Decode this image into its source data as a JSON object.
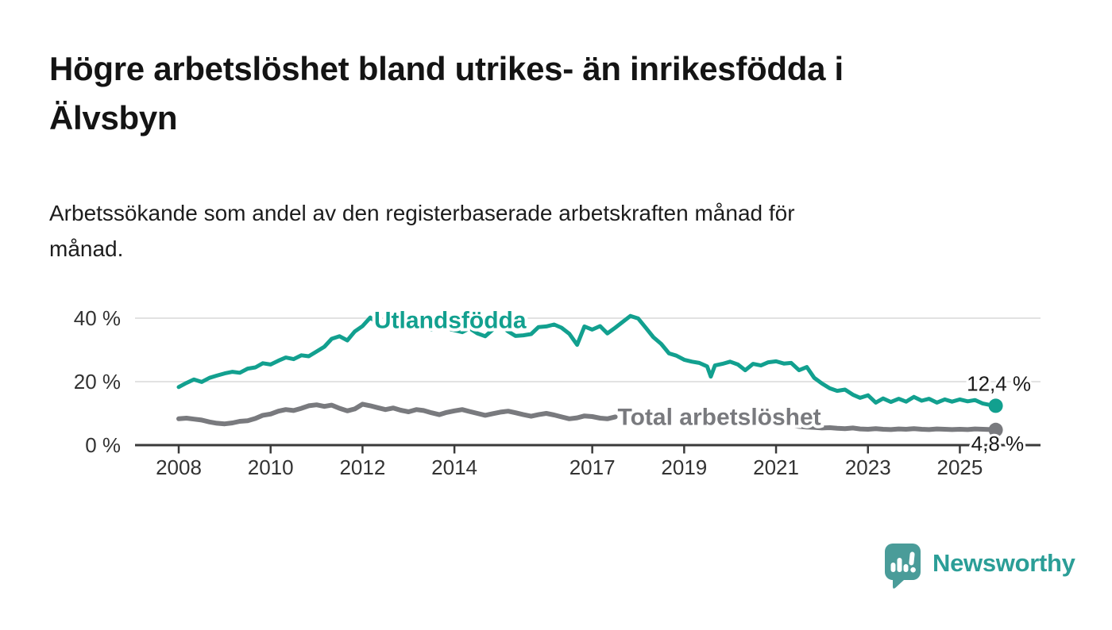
{
  "title": {
    "line1": "Högre arbetslöshet bland utrikes- än inrikesfödda i",
    "line2": "Älvsbyn"
  },
  "subtitle": {
    "line1": "Arbetssökande som andel av den registerbaserade arbetskraften månad för",
    "line2": "månad."
  },
  "branding": {
    "name": "Newsworthy",
    "icon": "newsworthy-speech-bubble-bar-chart-icon",
    "bubble_color": "#4a9c99",
    "text_color": "#2b9e97"
  },
  "chart_data": {
    "type": "line",
    "title": "Högre arbetslöshet bland utrikes- än inrikesfödda i Älvsbyn",
    "xlabel": "",
    "ylabel": "",
    "xlim": [
      2007.0,
      2026.8
    ],
    "ylim": [
      0,
      44
    ],
    "grid": "horizontal",
    "legend_position": "inline-labels",
    "colors": {
      "gridline": "#d9d9d9",
      "axis": "#3a3a3a",
      "tick_label": "#333333",
      "annotation": "#1a1a1a"
    },
    "x_axis": {
      "ticks": [
        {
          "value": 2008,
          "label": "2008"
        },
        {
          "value": 2010,
          "label": "2010"
        },
        {
          "value": 2012,
          "label": "2012"
        },
        {
          "value": 2014,
          "label": "2014"
        },
        {
          "value": 2017,
          "label": "2017"
        },
        {
          "value": 2019,
          "label": "2019"
        },
        {
          "value": 2021,
          "label": "2021"
        },
        {
          "value": 2023,
          "label": "2023"
        },
        {
          "value": 2025,
          "label": "2025"
        }
      ]
    },
    "y_axis": {
      "ticks": [
        {
          "value": 0,
          "label": "0 %"
        },
        {
          "value": 20,
          "label": "20 %"
        },
        {
          "value": 40,
          "label": "40 %"
        }
      ]
    },
    "series": [
      {
        "name": "Utlandsfödda",
        "color": "#12a08f",
        "line_width": 5,
        "end_dot": true,
        "label": {
          "text": "Utlandsfödda",
          "x": 2012.25,
          "y": 38.8
        },
        "end_annotation": {
          "text": "12,4 %",
          "x": 2025.85,
          "y": 18.8
        },
        "points": [
          [
            2008.0,
            18.3
          ],
          [
            2008.17,
            19.6
          ],
          [
            2008.33,
            20.7
          ],
          [
            2008.5,
            19.9
          ],
          [
            2008.67,
            21.2
          ],
          [
            2008.83,
            21.9
          ],
          [
            2009.0,
            22.6
          ],
          [
            2009.17,
            23.1
          ],
          [
            2009.33,
            22.8
          ],
          [
            2009.5,
            24.1
          ],
          [
            2009.67,
            24.5
          ],
          [
            2009.83,
            25.8
          ],
          [
            2010.0,
            25.4
          ],
          [
            2010.17,
            26.6
          ],
          [
            2010.33,
            27.6
          ],
          [
            2010.5,
            27.1
          ],
          [
            2010.67,
            28.3
          ],
          [
            2010.83,
            28.0
          ],
          [
            2011.0,
            29.5
          ],
          [
            2011.17,
            31.0
          ],
          [
            2011.33,
            33.5
          ],
          [
            2011.5,
            34.3
          ],
          [
            2011.67,
            33.0
          ],
          [
            2011.83,
            35.8
          ],
          [
            2012.0,
            37.5
          ],
          [
            2012.17,
            40.2
          ],
          [
            2012.33,
            38.4
          ],
          [
            2012.5,
            37.0
          ],
          [
            2012.67,
            38.0
          ],
          [
            2012.83,
            37.2
          ],
          [
            2013.0,
            38.2
          ],
          [
            2013.17,
            37.0
          ],
          [
            2013.33,
            37.8
          ],
          [
            2013.5,
            36.4
          ],
          [
            2013.67,
            37.4
          ],
          [
            2013.83,
            36.8
          ],
          [
            2014.0,
            36.2
          ],
          [
            2014.17,
            35.6
          ],
          [
            2014.33,
            36.8
          ],
          [
            2014.5,
            35.2
          ],
          [
            2014.67,
            34.3
          ],
          [
            2014.83,
            36.3
          ],
          [
            2015.0,
            37.8
          ],
          [
            2015.17,
            35.8
          ],
          [
            2015.33,
            34.4
          ],
          [
            2015.5,
            34.6
          ],
          [
            2015.67,
            35.0
          ],
          [
            2015.83,
            37.2
          ],
          [
            2016.0,
            37.4
          ],
          [
            2016.17,
            38.0
          ],
          [
            2016.33,
            37.0
          ],
          [
            2016.5,
            35.1
          ],
          [
            2016.67,
            31.6
          ],
          [
            2016.83,
            37.4
          ],
          [
            2017.0,
            36.4
          ],
          [
            2017.17,
            37.5
          ],
          [
            2017.33,
            35.2
          ],
          [
            2017.5,
            37.0
          ],
          [
            2017.67,
            38.9
          ],
          [
            2017.83,
            40.7
          ],
          [
            2018.0,
            39.9
          ],
          [
            2018.17,
            36.9
          ],
          [
            2018.33,
            34.0
          ],
          [
            2018.5,
            31.9
          ],
          [
            2018.67,
            28.9
          ],
          [
            2018.83,
            28.2
          ],
          [
            2019.0,
            26.9
          ],
          [
            2019.17,
            26.3
          ],
          [
            2019.33,
            25.9
          ],
          [
            2019.5,
            24.8
          ],
          [
            2019.58,
            21.6
          ],
          [
            2019.67,
            25.1
          ],
          [
            2019.83,
            25.6
          ],
          [
            2020.0,
            26.3
          ],
          [
            2020.17,
            25.4
          ],
          [
            2020.33,
            23.6
          ],
          [
            2020.5,
            25.6
          ],
          [
            2020.67,
            25.1
          ],
          [
            2020.83,
            26.1
          ],
          [
            2021.0,
            26.4
          ],
          [
            2021.17,
            25.7
          ],
          [
            2021.33,
            25.9
          ],
          [
            2021.5,
            23.6
          ],
          [
            2021.67,
            24.6
          ],
          [
            2021.83,
            21.2
          ],
          [
            2022.0,
            19.4
          ],
          [
            2022.17,
            17.9
          ],
          [
            2022.33,
            17.1
          ],
          [
            2022.5,
            17.5
          ],
          [
            2022.67,
            15.9
          ],
          [
            2022.83,
            14.9
          ],
          [
            2023.0,
            15.7
          ],
          [
            2023.17,
            13.4
          ],
          [
            2023.33,
            14.7
          ],
          [
            2023.5,
            13.6
          ],
          [
            2023.67,
            14.6
          ],
          [
            2023.83,
            13.7
          ],
          [
            2024.0,
            15.2
          ],
          [
            2024.17,
            14.0
          ],
          [
            2024.33,
            14.6
          ],
          [
            2024.5,
            13.4
          ],
          [
            2024.67,
            14.4
          ],
          [
            2024.83,
            13.7
          ],
          [
            2025.0,
            14.4
          ],
          [
            2025.17,
            13.8
          ],
          [
            2025.33,
            14.2
          ],
          [
            2025.5,
            13.1
          ],
          [
            2025.67,
            12.6
          ],
          [
            2025.78,
            12.4
          ]
        ]
      },
      {
        "name": "Total arbetslöshet",
        "color": "#797a7e",
        "line_width": 6,
        "end_dot": true,
        "label": {
          "text": "Total arbetslöshet",
          "x": 2017.55,
          "y": 8.3
        },
        "end_annotation": {
          "text": "4,8 %",
          "x": 2025.82,
          "y": 0
        },
        "points": [
          [
            2008.0,
            8.3
          ],
          [
            2008.17,
            8.5
          ],
          [
            2008.33,
            8.2
          ],
          [
            2008.5,
            7.9
          ],
          [
            2008.67,
            7.3
          ],
          [
            2008.83,
            6.9
          ],
          [
            2009.0,
            6.7
          ],
          [
            2009.17,
            7.0
          ],
          [
            2009.33,
            7.5
          ],
          [
            2009.5,
            7.7
          ],
          [
            2009.67,
            8.4
          ],
          [
            2009.83,
            9.4
          ],
          [
            2010.0,
            9.8
          ],
          [
            2010.17,
            10.7
          ],
          [
            2010.33,
            11.2
          ],
          [
            2010.5,
            10.9
          ],
          [
            2010.67,
            11.6
          ],
          [
            2010.83,
            12.4
          ],
          [
            2011.0,
            12.7
          ],
          [
            2011.17,
            12.2
          ],
          [
            2011.33,
            12.6
          ],
          [
            2011.5,
            11.6
          ],
          [
            2011.67,
            10.8
          ],
          [
            2011.83,
            11.4
          ],
          [
            2012.0,
            12.9
          ],
          [
            2012.17,
            12.4
          ],
          [
            2012.33,
            11.8
          ],
          [
            2012.5,
            11.2
          ],
          [
            2012.67,
            11.7
          ],
          [
            2012.83,
            11.0
          ],
          [
            2013.0,
            10.5
          ],
          [
            2013.17,
            11.2
          ],
          [
            2013.33,
            10.9
          ],
          [
            2013.5,
            10.2
          ],
          [
            2013.67,
            9.6
          ],
          [
            2013.83,
            10.3
          ],
          [
            2014.0,
            10.8
          ],
          [
            2014.17,
            11.2
          ],
          [
            2014.33,
            10.6
          ],
          [
            2014.5,
            10.0
          ],
          [
            2014.67,
            9.4
          ],
          [
            2014.83,
            9.9
          ],
          [
            2015.0,
            10.4
          ],
          [
            2015.17,
            10.7
          ],
          [
            2015.33,
            10.2
          ],
          [
            2015.5,
            9.6
          ],
          [
            2015.67,
            9.1
          ],
          [
            2015.83,
            9.6
          ],
          [
            2016.0,
            10.0
          ],
          [
            2016.17,
            9.5
          ],
          [
            2016.33,
            8.9
          ],
          [
            2016.5,
            8.3
          ],
          [
            2016.67,
            8.6
          ],
          [
            2016.83,
            9.2
          ],
          [
            2017.0,
            9.0
          ],
          [
            2017.17,
            8.5
          ],
          [
            2017.33,
            8.3
          ],
          [
            2017.5,
            8.9
          ],
          null,
          [
            2021.33,
            6.3
          ],
          [
            2021.5,
            5.9
          ],
          [
            2021.67,
            5.7
          ],
          [
            2021.83,
            5.6
          ],
          [
            2022.0,
            5.4
          ],
          [
            2022.17,
            5.5
          ],
          [
            2022.33,
            5.3
          ],
          [
            2022.5,
            5.2
          ],
          [
            2022.67,
            5.4
          ],
          [
            2022.83,
            5.1
          ],
          [
            2023.0,
            5.0
          ],
          [
            2023.17,
            5.2
          ],
          [
            2023.33,
            5.0
          ],
          [
            2023.5,
            4.9
          ],
          [
            2023.67,
            5.1
          ],
          [
            2023.83,
            5.0
          ],
          [
            2024.0,
            5.2
          ],
          [
            2024.17,
            5.0
          ],
          [
            2024.33,
            4.9
          ],
          [
            2024.5,
            5.1
          ],
          [
            2024.67,
            5.0
          ],
          [
            2024.83,
            4.9
          ],
          [
            2025.0,
            5.0
          ],
          [
            2025.17,
            4.9
          ],
          [
            2025.33,
            5.1
          ],
          [
            2025.5,
            5.0
          ],
          [
            2025.67,
            4.9
          ],
          [
            2025.78,
            4.8
          ]
        ]
      }
    ]
  }
}
